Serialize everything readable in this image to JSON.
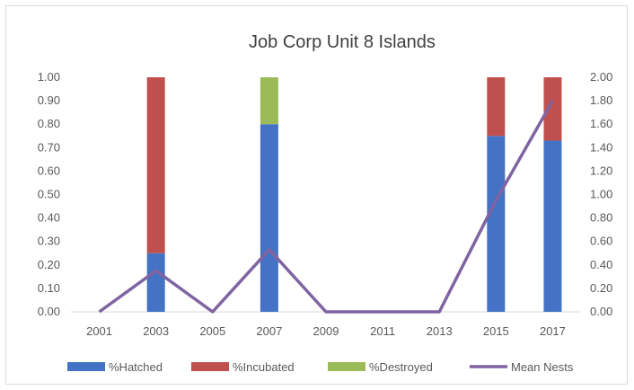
{
  "chart_data": {
    "type": "bar",
    "title": "Job Corp Unit 8 Islands",
    "categories": [
      "2001",
      "2003",
      "2005",
      "2007",
      "2009",
      "2011",
      "2013",
      "2015",
      "2017"
    ],
    "stacked": true,
    "series": [
      {
        "name": "%Hatched",
        "kind": "bar",
        "axis": "left",
        "color": "#4472c4",
        "values": [
          0,
          0.25,
          0,
          0.8,
          0,
          0,
          0,
          0.75,
          0.73
        ]
      },
      {
        "name": "%Incubated",
        "kind": "bar",
        "axis": "left",
        "color": "#c0504d",
        "values": [
          0,
          0.75,
          0,
          0,
          0,
          0,
          0,
          0.25,
          0.27
        ]
      },
      {
        "name": "%Destroyed",
        "kind": "bar",
        "axis": "left",
        "color": "#9bbb59",
        "values": [
          0,
          0,
          0,
          0.2,
          0,
          0,
          0,
          0,
          0
        ]
      },
      {
        "name": "Mean Nests",
        "kind": "line",
        "axis": "right",
        "color": "#8064a2",
        "values": [
          0,
          0.35,
          0,
          0.53,
          0,
          0,
          0,
          0.95,
          1.8
        ]
      }
    ],
    "y_left": {
      "ylim": [
        0,
        1
      ],
      "ticks": [
        "0.00",
        "0.10",
        "0.20",
        "0.30",
        "0.40",
        "0.50",
        "0.60",
        "0.70",
        "0.80",
        "0.90",
        "1.00"
      ]
    },
    "y_right": {
      "ylim": [
        0,
        2
      ],
      "ticks": [
        "0.00",
        "0.20",
        "0.40",
        "0.60",
        "0.80",
        "1.00",
        "1.20",
        "1.40",
        "1.60",
        "1.80",
        "2.00"
      ]
    },
    "grid": false,
    "legend_position": "bottom"
  }
}
